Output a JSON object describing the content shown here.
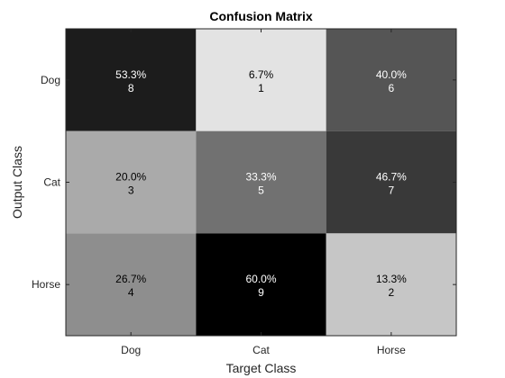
{
  "chart_data": {
    "type": "heatmap",
    "title": "Confusion Matrix",
    "xlabel": "Target Class",
    "ylabel": "Output Class",
    "x_categories": [
      "Dog",
      "Cat",
      "Horse"
    ],
    "y_categories": [
      "Dog",
      "Cat",
      "Horse"
    ],
    "percent_labels": [
      [
        "53.3%",
        "6.7%",
        "40.0%"
      ],
      [
        "20.0%",
        "33.3%",
        "46.7%"
      ],
      [
        "26.7%",
        "60.0%",
        "13.3%"
      ]
    ],
    "counts": [
      [
        8,
        1,
        6
      ],
      [
        3,
        5,
        7
      ],
      [
        4,
        9,
        2
      ]
    ],
    "percent_values": [
      [
        53.3,
        6.7,
        40.0
      ],
      [
        20.0,
        33.3,
        46.7
      ],
      [
        26.7,
        60.0,
        13.3
      ]
    ],
    "colormap": "gray",
    "color_range": [
      0,
      60
    ],
    "grid": false
  }
}
